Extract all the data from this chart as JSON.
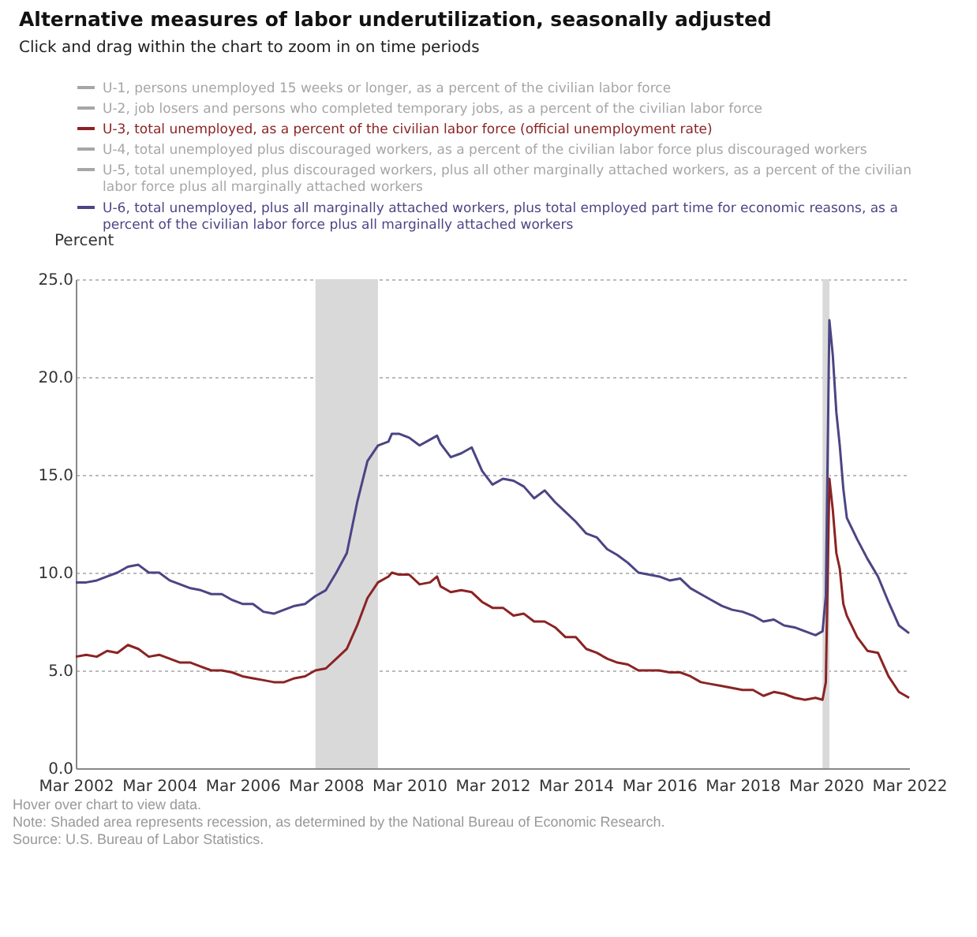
{
  "chart_data": {
    "type": "line",
    "title": "Alternative measures of labor underutilization, seasonally adjusted",
    "subtitle": "Click and drag within the chart to zoom in on time periods",
    "ylabel": "Percent",
    "x": [
      "2002-03",
      "2002-06",
      "2002-09",
      "2002-12",
      "2003-03",
      "2003-06",
      "2003-09",
      "2003-12",
      "2004-03",
      "2004-06",
      "2004-09",
      "2004-12",
      "2005-03",
      "2005-06",
      "2005-09",
      "2005-12",
      "2006-03",
      "2006-06",
      "2006-09",
      "2006-12",
      "2007-03",
      "2007-06",
      "2007-09",
      "2007-12",
      "2008-03",
      "2008-06",
      "2008-09",
      "2008-12",
      "2009-03",
      "2009-06",
      "2009-09",
      "2009-10",
      "2009-12",
      "2010-03",
      "2010-06",
      "2010-09",
      "2010-11",
      "2010-12",
      "2011-03",
      "2011-06",
      "2011-09",
      "2011-12",
      "2012-03",
      "2012-06",
      "2012-09",
      "2012-12",
      "2013-03",
      "2013-06",
      "2013-09",
      "2013-12",
      "2014-03",
      "2014-06",
      "2014-09",
      "2014-12",
      "2015-03",
      "2015-06",
      "2015-09",
      "2015-12",
      "2016-03",
      "2016-06",
      "2016-09",
      "2016-12",
      "2017-03",
      "2017-06",
      "2017-09",
      "2017-12",
      "2018-03",
      "2018-06",
      "2018-09",
      "2018-12",
      "2019-03",
      "2019-06",
      "2019-09",
      "2019-12",
      "2020-02",
      "2020-03",
      "2020-04",
      "2020-05",
      "2020-06",
      "2020-07",
      "2020-08",
      "2020-09",
      "2020-12",
      "2021-03",
      "2021-06",
      "2021-09",
      "2021-12",
      "2022-03"
    ],
    "series": [
      {
        "name": "U-1, persons unemployed 15 weeks or longer, as a percent of the civilian labor force",
        "color": "#a6a6a6",
        "values": [
          null,
          null,
          null,
          null,
          null,
          null,
          null,
          null,
          null,
          null,
          null,
          null,
          null,
          null,
          null,
          null,
          null,
          null,
          null,
          null,
          null,
          null,
          null,
          null,
          null,
          null,
          null,
          null,
          null,
          null,
          null,
          null,
          null,
          null,
          null,
          null,
          null,
          null,
          null,
          null,
          null,
          null,
          null,
          null,
          null,
          null,
          null,
          null,
          null,
          null,
          null,
          null,
          null,
          null,
          null,
          null,
          null,
          null,
          null,
          null,
          null,
          null,
          null,
          null,
          null,
          null,
          null,
          null,
          null,
          null,
          null,
          null,
          null,
          null,
          null,
          null,
          null,
          null,
          null,
          null,
          null,
          null,
          null,
          null,
          null,
          null,
          null,
          null
        ]
      },
      {
        "name": "U-2, job losers and persons who completed temporary jobs, as a percent of the civilian labor force",
        "color": "#a6a6a6",
        "values": [
          null,
          null,
          null,
          null,
          null,
          null,
          null,
          null,
          null,
          null,
          null,
          null,
          null,
          null,
          null,
          null,
          null,
          null,
          null,
          null,
          null,
          null,
          null,
          null,
          null,
          null,
          null,
          null,
          null,
          null,
          null,
          null,
          null,
          null,
          null,
          null,
          null,
          null,
          null,
          null,
          null,
          null,
          null,
          null,
          null,
          null,
          null,
          null,
          null,
          null,
          null,
          null,
          null,
          null,
          null,
          null,
          null,
          null,
          null,
          null,
          null,
          null,
          null,
          null,
          null,
          null,
          null,
          null,
          null,
          null,
          null,
          null,
          null,
          null,
          null,
          null,
          null,
          null,
          null,
          null,
          null,
          null,
          null,
          null,
          null,
          null,
          null,
          null
        ]
      },
      {
        "name": "U-3, total unemployed, as a percent of the civilian labor force (official unemployment rate)",
        "color": "#8b2323",
        "values": [
          5.7,
          5.8,
          5.7,
          6.0,
          5.9,
          6.3,
          6.1,
          5.7,
          5.8,
          5.6,
          5.4,
          5.4,
          5.2,
          5.0,
          5.0,
          4.9,
          4.7,
          4.6,
          4.5,
          4.4,
          4.4,
          4.6,
          4.7,
          5.0,
          5.1,
          5.6,
          6.1,
          7.3,
          8.7,
          9.5,
          9.8,
          10.0,
          9.9,
          9.9,
          9.4,
          9.5,
          9.8,
          9.3,
          9.0,
          9.1,
          9.0,
          8.5,
          8.2,
          8.2,
          7.8,
          7.9,
          7.5,
          7.5,
          7.2,
          6.7,
          6.7,
          6.1,
          5.9,
          5.6,
          5.4,
          5.3,
          5.0,
          5.0,
          5.0,
          4.9,
          4.9,
          4.7,
          4.4,
          4.3,
          4.2,
          4.1,
          4.0,
          4.0,
          3.7,
          3.9,
          3.8,
          3.6,
          3.5,
          3.6,
          3.5,
          4.4,
          14.8,
          13.2,
          11.0,
          10.2,
          8.4,
          7.8,
          6.7,
          6.0,
          5.9,
          4.7,
          3.9,
          3.6
        ]
      },
      {
        "name": "U-4, total unemployed plus discouraged workers, as a percent of the civilian labor force plus discouraged workers",
        "color": "#a6a6a6",
        "values": [
          null,
          null,
          null,
          null,
          null,
          null,
          null,
          null,
          null,
          null,
          null,
          null,
          null,
          null,
          null,
          null,
          null,
          null,
          null,
          null,
          null,
          null,
          null,
          null,
          null,
          null,
          null,
          null,
          null,
          null,
          null,
          null,
          null,
          null,
          null,
          null,
          null,
          null,
          null,
          null,
          null,
          null,
          null,
          null,
          null,
          null,
          null,
          null,
          null,
          null,
          null,
          null,
          null,
          null,
          null,
          null,
          null,
          null,
          null,
          null,
          null,
          null,
          null,
          null,
          null,
          null,
          null,
          null,
          null,
          null,
          null,
          null,
          null,
          null,
          null,
          null,
          null,
          null,
          null,
          null,
          null,
          null,
          null,
          null,
          null,
          null,
          null,
          null
        ]
      },
      {
        "name": "U-5, total unemployed, plus discouraged workers, plus all other marginally attached workers, as a percent of the civilian labor force plus all marginally attached workers",
        "color": "#a6a6a6",
        "values": [
          null,
          null,
          null,
          null,
          null,
          null,
          null,
          null,
          null,
          null,
          null,
          null,
          null,
          null,
          null,
          null,
          null,
          null,
          null,
          null,
          null,
          null,
          null,
          null,
          null,
          null,
          null,
          null,
          null,
          null,
          null,
          null,
          null,
          null,
          null,
          null,
          null,
          null,
          null,
          null,
          null,
          null,
          null,
          null,
          null,
          null,
          null,
          null,
          null,
          null,
          null,
          null,
          null,
          null,
          null,
          null,
          null,
          null,
          null,
          null,
          null,
          null,
          null,
          null,
          null,
          null,
          null,
          null,
          null,
          null,
          null,
          null,
          null,
          null,
          null,
          null,
          null,
          null,
          null,
          null,
          null,
          null,
          null,
          null,
          null,
          null,
          null,
          null
        ]
      },
      {
        "name": "U-6, total unemployed, plus all marginally attached workers, plus total employed part time for economic reasons, as a percent of the civilian labor force plus all marginally attached workers",
        "color": "#4b4584",
        "values": [
          9.5,
          9.5,
          9.6,
          9.8,
          10.0,
          10.3,
          10.4,
          10.0,
          10.0,
          9.6,
          9.4,
          9.2,
          9.1,
          8.9,
          8.9,
          8.6,
          8.4,
          8.4,
          8.0,
          7.9,
          8.1,
          8.3,
          8.4,
          8.8,
          9.1,
          10.0,
          11.0,
          13.6,
          15.7,
          16.5,
          16.7,
          17.1,
          17.1,
          16.9,
          16.5,
          16.8,
          17.0,
          16.6,
          15.9,
          16.1,
          16.4,
          15.2,
          14.5,
          14.8,
          14.7,
          14.4,
          13.8,
          14.2,
          13.6,
          13.1,
          12.6,
          12.0,
          11.8,
          11.2,
          10.9,
          10.5,
          10.0,
          9.9,
          9.8,
          9.6,
          9.7,
          9.2,
          8.9,
          8.6,
          8.3,
          8.1,
          8.0,
          7.8,
          7.5,
          7.6,
          7.3,
          7.2,
          7.0,
          6.8,
          7.0,
          8.8,
          22.9,
          21.1,
          18.2,
          16.5,
          14.3,
          12.8,
          11.7,
          10.7,
          9.8,
          8.5,
          7.3,
          6.9
        ]
      }
    ],
    "xlim": [
      "2002-03",
      "2022-03"
    ],
    "xticks": [
      {
        "value": "2002-03",
        "label": "Mar 2002"
      },
      {
        "value": "2004-03",
        "label": "Mar 2004"
      },
      {
        "value": "2006-03",
        "label": "Mar 2006"
      },
      {
        "value": "2008-03",
        "label": "Mar 2008"
      },
      {
        "value": "2010-03",
        "label": "Mar 2010"
      },
      {
        "value": "2012-03",
        "label": "Mar 2012"
      },
      {
        "value": "2014-03",
        "label": "Mar 2014"
      },
      {
        "value": "2016-03",
        "label": "Mar 2016"
      },
      {
        "value": "2018-03",
        "label": "Mar 2018"
      },
      {
        "value": "2020-03",
        "label": "Mar 2020"
      },
      {
        "value": "2022-03",
        "label": "Mar 2022"
      }
    ],
    "ylim": [
      0,
      25
    ],
    "yticks": [
      {
        "value": 0,
        "label": "0.0"
      },
      {
        "value": 5,
        "label": "5.0"
      },
      {
        "value": 10,
        "label": "10.0"
      },
      {
        "value": 15,
        "label": "15.0"
      },
      {
        "value": 20,
        "label": "20.0"
      },
      {
        "value": 25,
        "label": "25.0"
      }
    ],
    "bands": [
      {
        "axis": "x",
        "from": "2007-12",
        "to": "2009-06",
        "color": "#d9d9d9"
      },
      {
        "axis": "x",
        "from": "2020-02",
        "to": "2020-04",
        "color": "#d9d9d9"
      }
    ],
    "grid": "y",
    "legend": "top",
    "line_style": "solid",
    "annotations": [
      "Hover over chart to view data.",
      "Note: Shaded area represents recession, as determined by the National Bureau of Economic Research.",
      "Source: U.S. Bureau of Labor Statistics."
    ]
  }
}
